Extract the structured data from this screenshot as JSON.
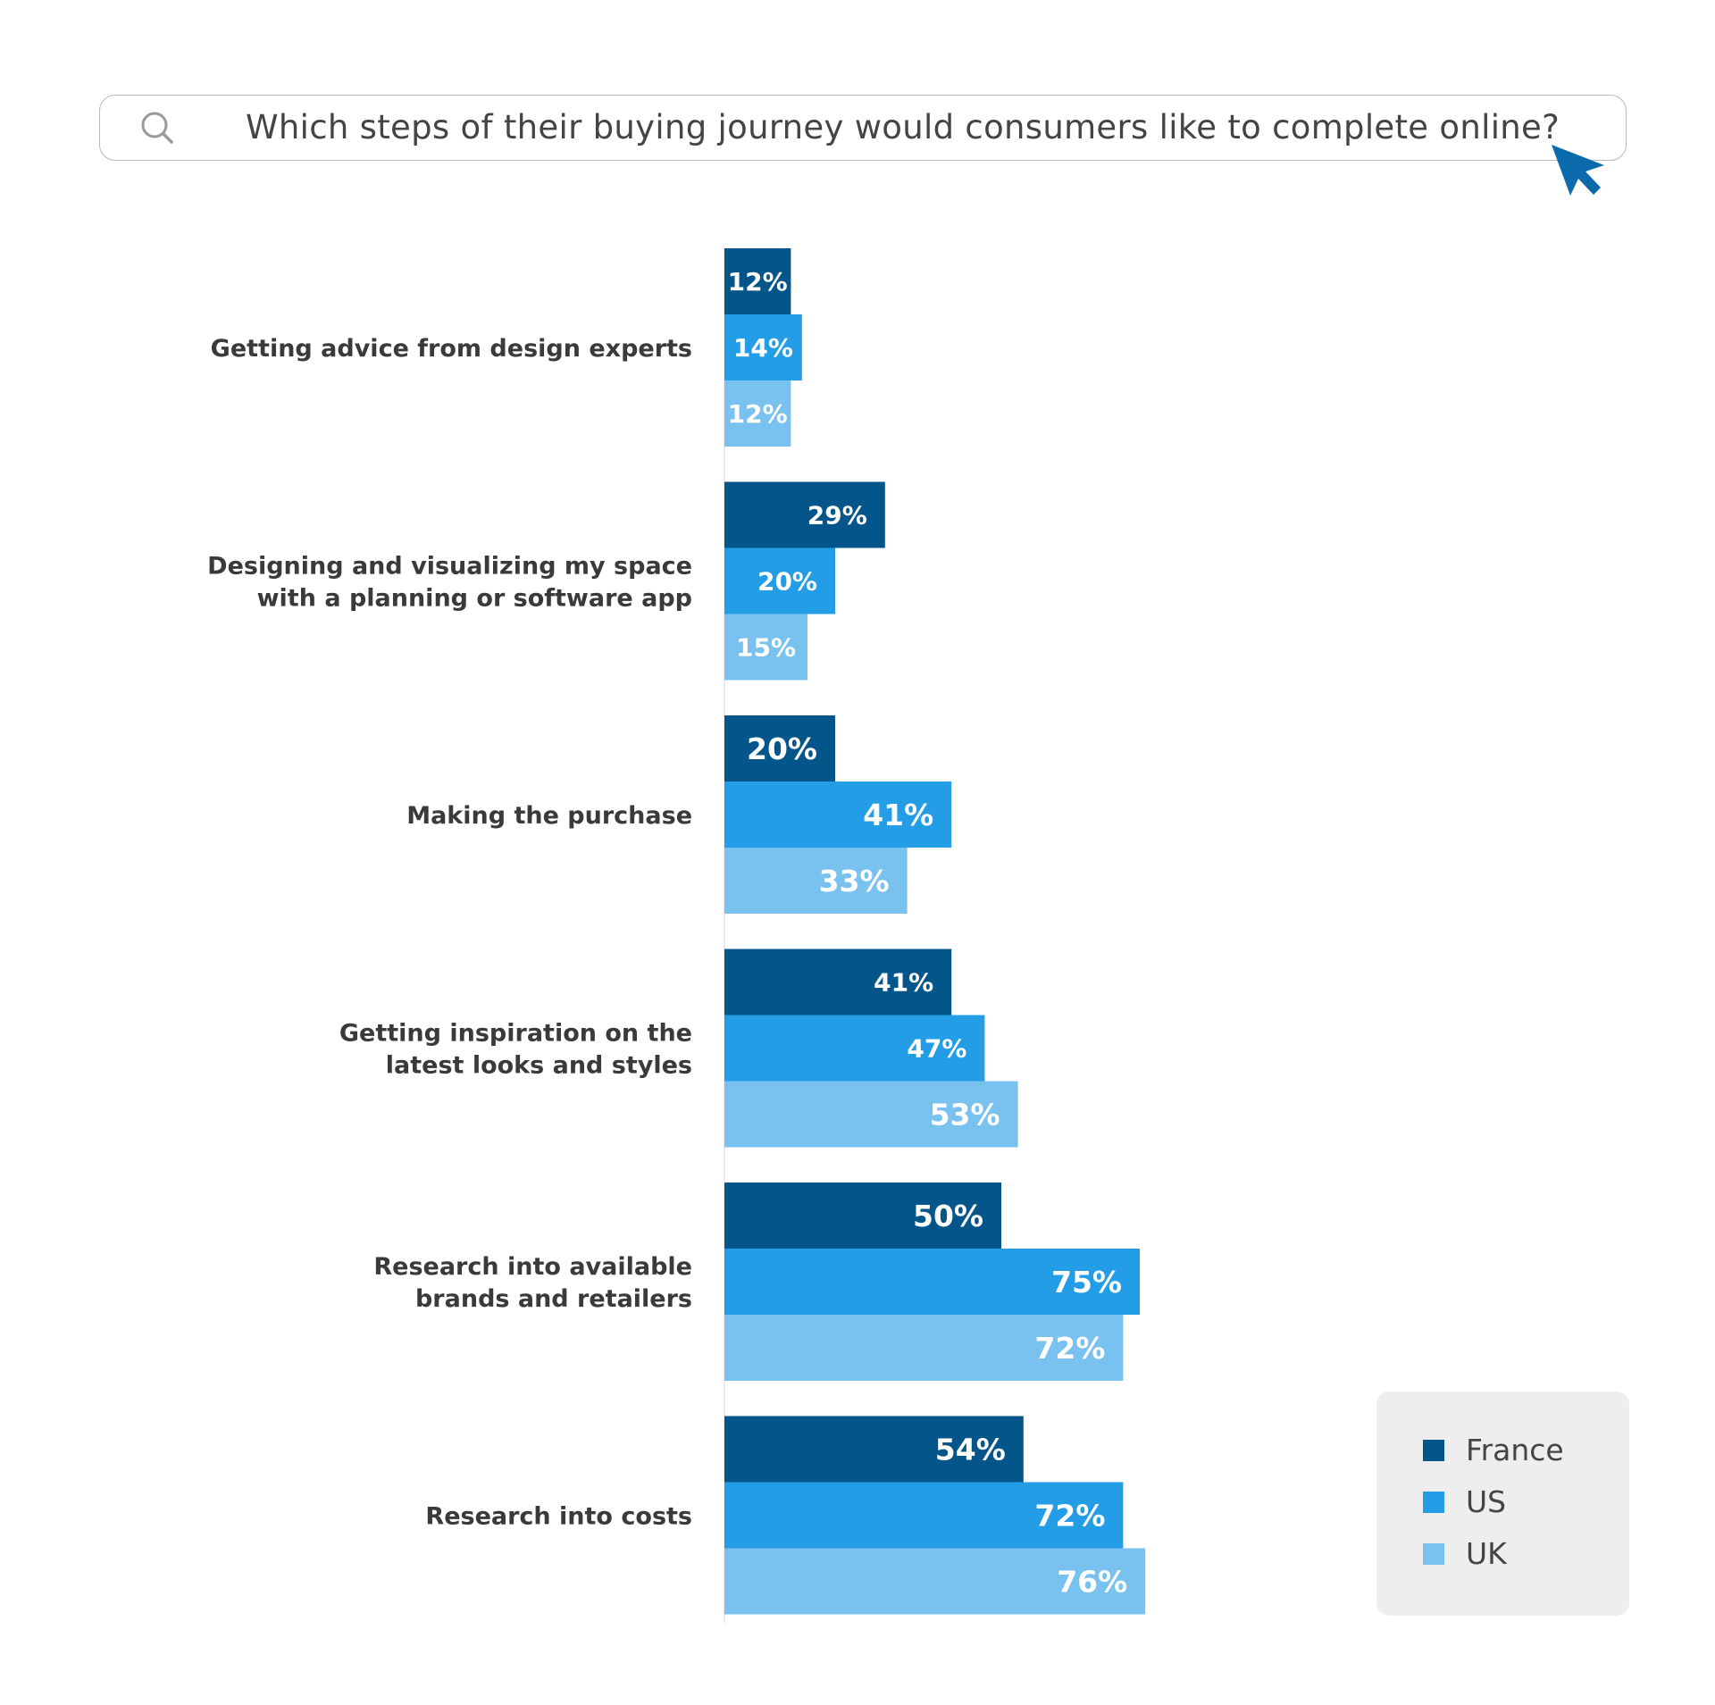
{
  "search": {
    "query": "Which steps of their buying journey would consumers like to complete online?",
    "icon": "search-icon"
  },
  "cursor": {
    "icon": "cursor-arrow-icon",
    "color": "#0a6aab"
  },
  "colors": {
    "France": "#04568a",
    "US": "#239de6",
    "UK": "#79c2ef"
  },
  "legend": {
    "items": [
      {
        "label": "France"
      },
      {
        "label": "US"
      },
      {
        "label": "UK"
      }
    ]
  },
  "chart_data": {
    "type": "bar",
    "orientation": "horizontal",
    "title": "Which steps of their buying journey would consumers like to complete online?",
    "categories": [
      [
        "Getting advice from design experts"
      ],
      [
        "Designing and visualizing my space",
        "with a planning or software app"
      ],
      [
        "Making the purchase"
      ],
      [
        "Getting inspiration on the",
        "latest looks and styles"
      ],
      [
        "Research into available",
        "brands and retailers"
      ],
      [
        "Research into costs"
      ]
    ],
    "series": [
      {
        "name": "France",
        "values": [
          12,
          29,
          20,
          41,
          50,
          54
        ]
      },
      {
        "name": "US",
        "values": [
          14,
          20,
          41,
          47,
          75,
          72
        ]
      },
      {
        "name": "UK",
        "values": [
          12,
          15,
          33,
          53,
          72,
          76
        ]
      }
    ],
    "unit": "%",
    "grid": false,
    "legend_position": "bottom-right"
  }
}
